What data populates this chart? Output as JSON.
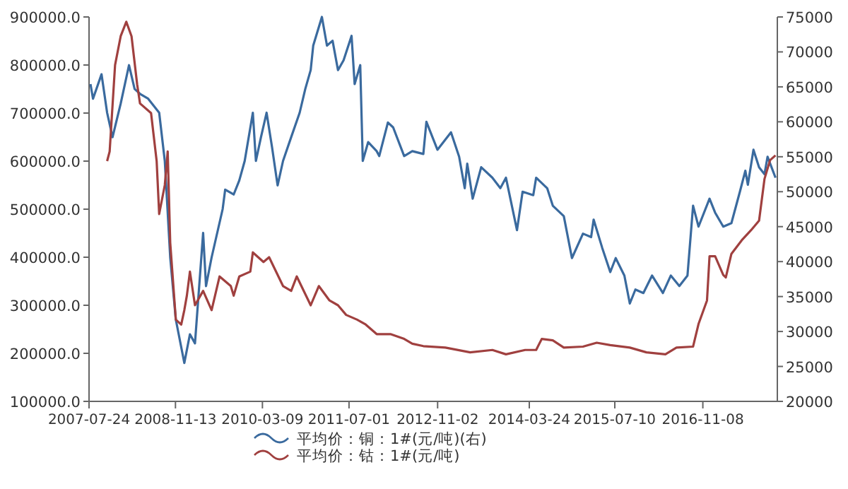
{
  "chart_data": {
    "type": "line",
    "legend": "bottom",
    "xlim": [
      "2007-07-24",
      "2017-12-25"
    ],
    "xticks": [
      "2007-07-24",
      "2008-11-13",
      "2010-03-09",
      "2011-07-01",
      "2012-11-02",
      "2014-03-24",
      "2015-07-10",
      "2016-11-08"
    ],
    "ylim": [
      100000,
      900000
    ],
    "yticks": [
      {
        "value": 100000,
        "label": "100000.0"
      },
      {
        "value": 200000,
        "label": "200000.0"
      },
      {
        "value": 300000,
        "label": "300000.0"
      },
      {
        "value": 400000,
        "label": "400000.0"
      },
      {
        "value": 500000,
        "label": "500000.0"
      },
      {
        "value": 600000,
        "label": "600000.0"
      },
      {
        "value": 700000,
        "label": "700000.0"
      },
      {
        "value": 800000,
        "label": "800000.0"
      },
      {
        "value": 900000,
        "label": "900000.0"
      }
    ],
    "y2lim": [
      20000,
      75000
    ],
    "y2ticks": [
      20000,
      25000,
      30000,
      35000,
      40000,
      45000,
      50000,
      55000,
      60000,
      65000,
      70000,
      75000
    ],
    "series": [
      {
        "name": "平均价：铜：1#(元/吨)(右)",
        "color": "#3a6a9e",
        "axis": "y2",
        "x": [
          "2007-08-01",
          "2007-08-15",
          "2007-10-01",
          "2007-11-01",
          "2007-12-01",
          "2008-01-15",
          "2008-03-01",
          "2008-04-01",
          "2008-05-01",
          "2008-06-15",
          "2008-08-15",
          "2008-09-15",
          "2008-10-15",
          "2008-11-15",
          "2009-01-01",
          "2009-02-01",
          "2009-03-01",
          "2009-04-15",
          "2009-05-01",
          "2009-06-01",
          "2009-08-01",
          "2009-08-15",
          "2009-10-01",
          "2009-11-01",
          "2009-12-01",
          "2010-01-15",
          "2010-02-01",
          "2010-03-01",
          "2010-04-01",
          "2010-05-01",
          "2010-06-01",
          "2010-07-01",
          "2010-08-15",
          "2010-10-01",
          "2010-11-01",
          "2010-12-01",
          "2010-12-15",
          "2011-02-01",
          "2011-03-01",
          "2011-04-01",
          "2011-05-01",
          "2011-06-01",
          "2011-07-15",
          "2011-08-01",
          "2011-09-01",
          "2011-09-15",
          "2011-10-15",
          "2011-12-01",
          "2011-12-15",
          "2012-02-01",
          "2012-03-01",
          "2012-05-01",
          "2012-06-15",
          "2012-08-15",
          "2012-09-01",
          "2012-11-01",
          "2013-01-15",
          "2013-03-01",
          "2013-04-01",
          "2013-04-15",
          "2013-05-15",
          "2013-07-01",
          "2013-09-01",
          "2013-10-15",
          "2013-11-15",
          "2014-01-15",
          "2014-02-15",
          "2014-04-15",
          "2014-05-01",
          "2014-07-01",
          "2014-08-01",
          "2014-10-01",
          "2014-11-15",
          "2015-01-15",
          "2015-03-01",
          "2015-03-15",
          "2015-05-01",
          "2015-06-15",
          "2015-07-15",
          "2015-09-01",
          "2015-10-01",
          "2015-11-01",
          "2015-12-15",
          "2016-02-01",
          "2016-04-01",
          "2016-05-15",
          "2016-07-01",
          "2016-08-15",
          "2016-09-15",
          "2016-10-15",
          "2016-12-15",
          "2017-01-15",
          "2017-03-01",
          "2017-04-15",
          "2017-06-01",
          "2017-07-01",
          "2017-07-15",
          "2017-08-15",
          "2017-09-15",
          "2017-10-15",
          "2017-11-01",
          "2017-12-15"
        ],
        "values": [
          65400,
          63300,
          66800,
          61300,
          57800,
          62600,
          68100,
          64700,
          64000,
          63300,
          61300,
          54400,
          40600,
          31700,
          25500,
          29600,
          28300,
          44100,
          36500,
          40600,
          47500,
          50300,
          49600,
          51600,
          54400,
          61300,
          54400,
          57800,
          61300,
          56400,
          50900,
          54400,
          57800,
          61300,
          64700,
          67400,
          70900,
          75000,
          70900,
          71600,
          67400,
          68800,
          72300,
          65400,
          68100,
          54400,
          57100,
          55800,
          55100,
          59900,
          59200,
          55100,
          55800,
          55400,
          60000,
          56000,
          58500,
          55000,
          50500,
          54000,
          49000,
          53500,
          52000,
          50500,
          52000,
          44500,
          50000,
          49500,
          52000,
          50500,
          48000,
          46500,
          40500,
          44000,
          43500,
          46000,
          42000,
          38500,
          40500,
          38000,
          34000,
          36000,
          35500,
          38000,
          35500,
          38000,
          36500,
          38000,
          48000,
          45000,
          49000,
          47000,
          45000,
          45500,
          50000,
          53000,
          51000,
          56000,
          53500,
          52500,
          55000,
          52000
        ]
      },
      {
        "name": "平均价：钴：1#(元/吨)",
        "color": "#a0403f",
        "x": [
          "2007-11-01",
          "2007-11-15",
          "2007-12-15",
          "2008-01-15",
          "2008-02-15",
          "2008-03-15",
          "2008-04-15",
          "2008-05-01",
          "2008-07-01",
          "2008-08-01",
          "2008-08-15",
          "2008-09-15",
          "2008-10-01",
          "2008-10-15",
          "2008-11-15",
          "2008-12-15",
          "2009-01-01",
          "2009-01-15",
          "2009-02-01",
          "2009-03-01",
          "2009-04-15",
          "2009-06-01",
          "2009-07-15",
          "2009-09-15",
          "2009-10-01",
          "2009-11-01",
          "2010-01-01",
          "2010-01-15",
          "2010-03-15",
          "2010-04-15",
          "2010-07-01",
          "2010-08-15",
          "2010-09-15",
          "2010-12-01",
          "2011-01-15",
          "2011-03-15",
          "2011-05-01",
          "2011-06-15",
          "2011-08-15",
          "2011-10-01",
          "2011-12-01",
          "2012-02-15",
          "2012-05-01",
          "2012-06-15",
          "2012-08-15",
          "2012-12-15",
          "2013-05-01",
          "2013-09-01",
          "2013-11-15",
          "2014-03-01",
          "2014-05-01",
          "2014-06-01",
          "2014-08-01",
          "2014-10-01",
          "2015-01-15",
          "2015-04-01",
          "2015-06-15",
          "2015-10-01",
          "2016-01-01",
          "2016-04-15",
          "2016-06-15",
          "2016-09-15",
          "2016-10-15",
          "2016-12-01",
          "2016-12-15",
          "2017-01-15",
          "2017-03-01",
          "2017-03-15",
          "2017-04-15",
          "2017-06-15",
          "2017-08-01",
          "2017-09-15",
          "2017-10-15",
          "2017-11-15",
          "2017-12-15"
        ],
        "values": [
          600000,
          620000,
          800000,
          860000,
          890000,
          860000,
          760000,
          720000,
          700000,
          600000,
          490000,
          550000,
          620000,
          430000,
          270000,
          260000,
          290000,
          320000,
          370000,
          300000,
          330000,
          290000,
          360000,
          340000,
          320000,
          360000,
          370000,
          410000,
          390000,
          400000,
          340000,
          330000,
          360000,
          300000,
          340000,
          310000,
          300000,
          280000,
          270000,
          260000,
          240000,
          240000,
          230000,
          220000,
          215000,
          212000,
          202000,
          207000,
          198000,
          207000,
          207000,
          230000,
          227000,
          212000,
          214000,
          222000,
          217000,
          212000,
          202000,
          198000,
          212000,
          214000,
          261000,
          310000,
          402000,
          402000,
          363000,
          358000,
          407000,
          437000,
          456000,
          476000,
          563000,
          602000,
          612000
        ]
      }
    ]
  }
}
